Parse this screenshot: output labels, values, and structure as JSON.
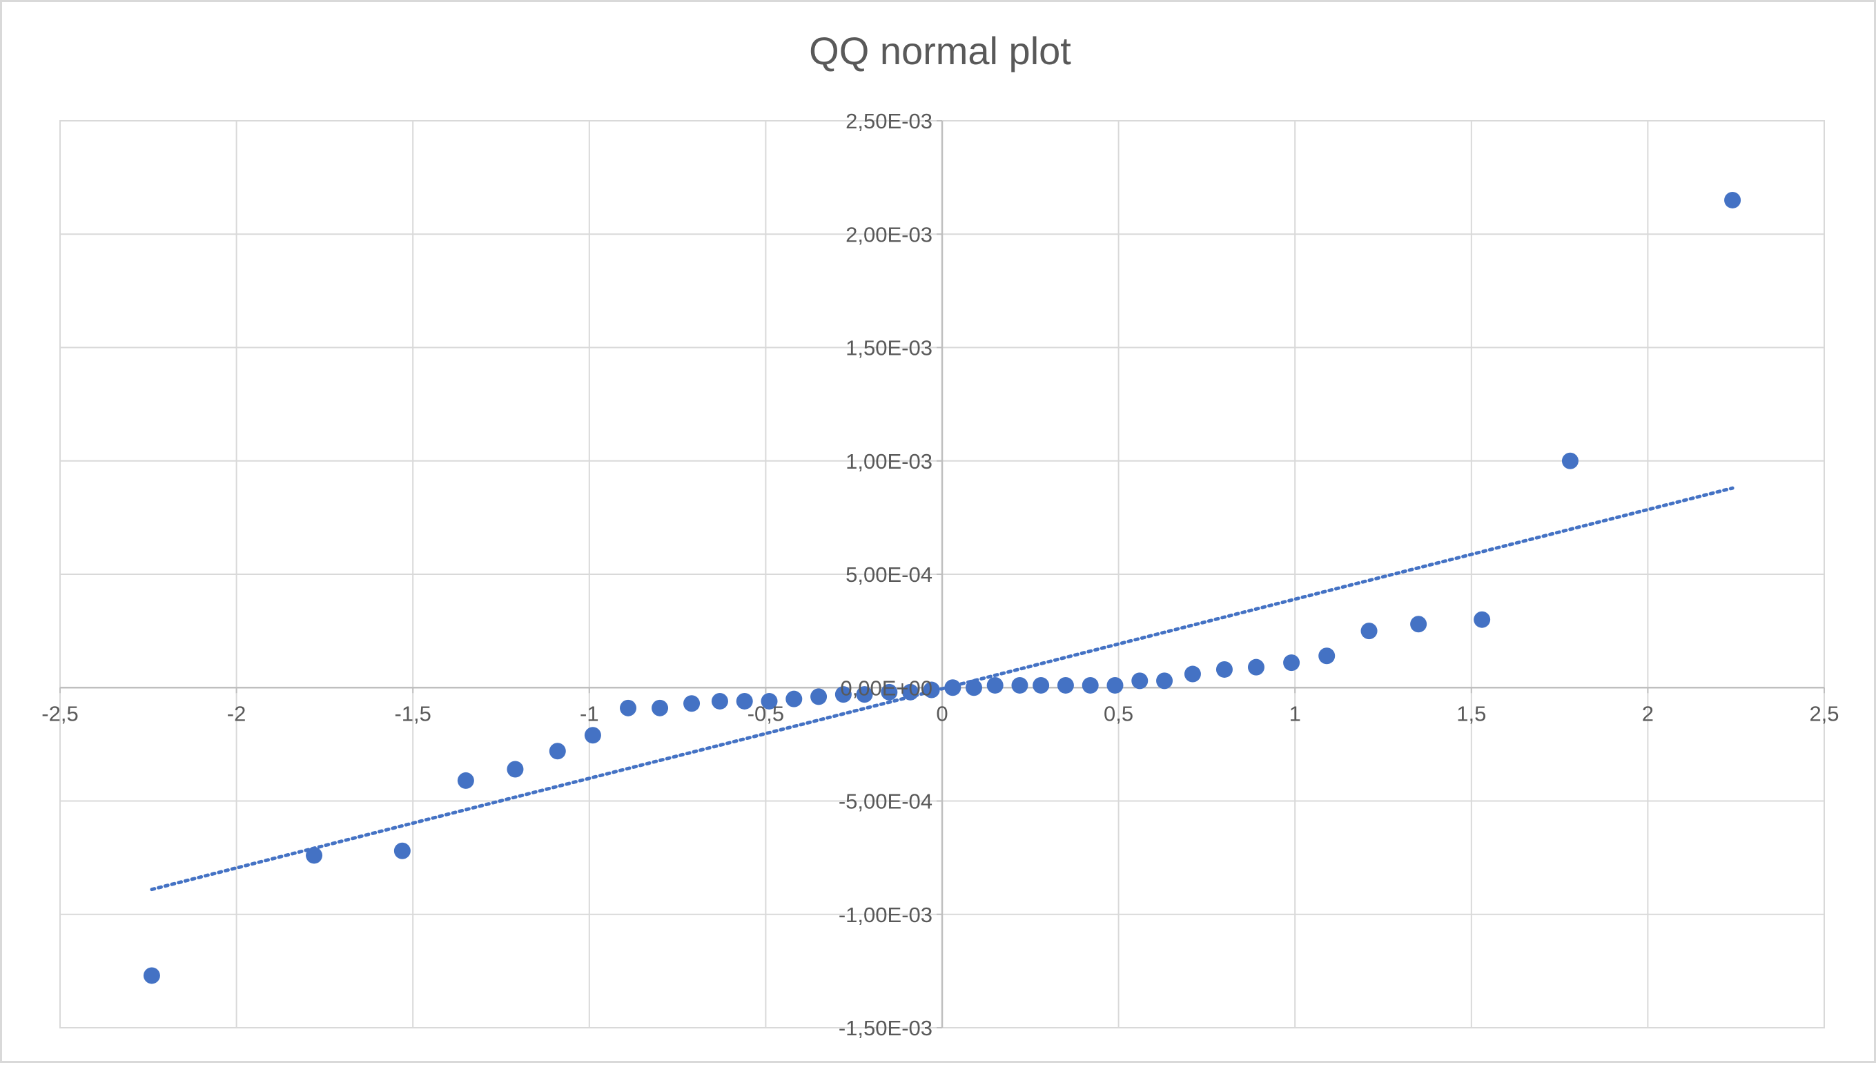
{
  "chart_data": {
    "type": "scatter",
    "title": "QQ normal plot",
    "xlabel": "",
    "ylabel": "",
    "xlim": [
      -2.5,
      2.5
    ],
    "ylim": [
      -0.0015,
      0.0025
    ],
    "grid": true,
    "legend": "none",
    "x_ticks": [
      {
        "value": -2.5,
        "label": "-2,5"
      },
      {
        "value": -2,
        "label": "-2"
      },
      {
        "value": -1.5,
        "label": "-1,5"
      },
      {
        "value": -1,
        "label": "-1"
      },
      {
        "value": -0.5,
        "label": "-0,5"
      },
      {
        "value": 0,
        "label": "0"
      },
      {
        "value": 0.5,
        "label": "0,5"
      },
      {
        "value": 1,
        "label": "1"
      },
      {
        "value": 1.5,
        "label": "1,5"
      },
      {
        "value": 2,
        "label": "2"
      },
      {
        "value": 2.5,
        "label": "2,5"
      }
    ],
    "y_ticks": [
      {
        "value": 0.0025,
        "label": "2,50E-03"
      },
      {
        "value": 0.002,
        "label": "2,00E-03"
      },
      {
        "value": 0.0015,
        "label": "1,50E-03"
      },
      {
        "value": 0.001,
        "label": "1,00E-03"
      },
      {
        "value": 0.0005,
        "label": "5,00E-04"
      },
      {
        "value": 0,
        "label": "0,00E+00"
      },
      {
        "value": -0.0005,
        "label": "-5,00E-04"
      },
      {
        "value": -0.001,
        "label": "-1,00E-03"
      },
      {
        "value": -0.0015,
        "label": "-1,50E-03"
      }
    ],
    "series": [
      {
        "color": "#4472c4",
        "points": [
          {
            "x": -2.24,
            "y": -0.00127
          },
          {
            "x": -1.78,
            "y": -0.00074
          },
          {
            "x": -1.53,
            "y": -0.00072
          },
          {
            "x": -1.35,
            "y": -0.00041
          },
          {
            "x": -1.21,
            "y": -0.00036
          },
          {
            "x": -1.09,
            "y": -0.00028
          },
          {
            "x": -0.99,
            "y": -0.00021
          },
          {
            "x": -0.89,
            "y": -9e-05
          },
          {
            "x": -0.8,
            "y": -9e-05
          },
          {
            "x": -0.71,
            "y": -7e-05
          },
          {
            "x": -0.63,
            "y": -6e-05
          },
          {
            "x": -0.56,
            "y": -6e-05
          },
          {
            "x": -0.49,
            "y": -6e-05
          },
          {
            "x": -0.42,
            "y": -5e-05
          },
          {
            "x": -0.35,
            "y": -4e-05
          },
          {
            "x": -0.28,
            "y": -3e-05
          },
          {
            "x": -0.22,
            "y": -3e-05
          },
          {
            "x": -0.15,
            "y": -2e-05
          },
          {
            "x": -0.09,
            "y": -2e-05
          },
          {
            "x": -0.03,
            "y": -1e-05
          },
          {
            "x": 0.03,
            "y": 0.0
          },
          {
            "x": 0.09,
            "y": 0.0
          },
          {
            "x": 0.15,
            "y": 1e-05
          },
          {
            "x": 0.22,
            "y": 1e-05
          },
          {
            "x": 0.28,
            "y": 1e-05
          },
          {
            "x": 0.35,
            "y": 1e-05
          },
          {
            "x": 0.42,
            "y": 1e-05
          },
          {
            "x": 0.49,
            "y": 1e-05
          },
          {
            "x": 0.56,
            "y": 3e-05
          },
          {
            "x": 0.63,
            "y": 3e-05
          },
          {
            "x": 0.71,
            "y": 6e-05
          },
          {
            "x": 0.8,
            "y": 8e-05
          },
          {
            "x": 0.89,
            "y": 9e-05
          },
          {
            "x": 0.99,
            "y": 0.00011
          },
          {
            "x": 1.09,
            "y": 0.00014
          },
          {
            "x": 1.21,
            "y": 0.00025
          },
          {
            "x": 1.35,
            "y": 0.00028
          },
          {
            "x": 1.53,
            "y": 0.0003
          },
          {
            "x": 1.78,
            "y": 0.001
          },
          {
            "x": 2.24,
            "y": 0.00215
          }
        ]
      }
    ],
    "trendline": {
      "type": "linear",
      "style": "dotted",
      "color": "#4472c4",
      "from": {
        "x": -2.24,
        "y": -0.00089
      },
      "to": {
        "x": 2.24,
        "y": 0.00088
      }
    }
  }
}
